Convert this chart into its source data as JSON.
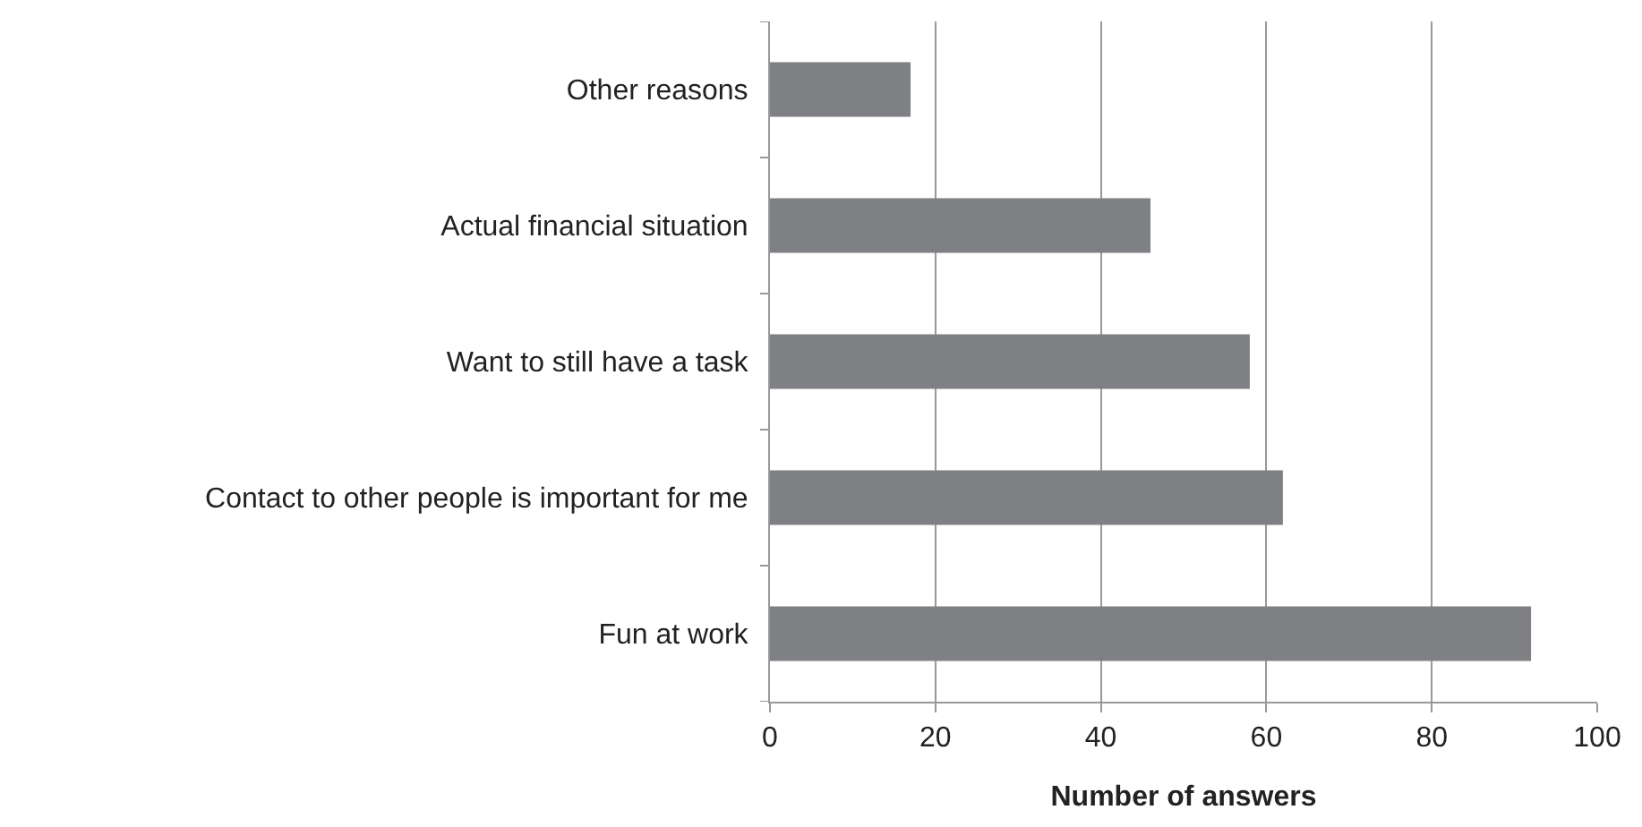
{
  "chart_data": {
    "type": "bar",
    "orientation": "horizontal",
    "xlabel": "Number of answers",
    "categories": [
      "Other reasons",
      "Actual financial situation",
      "Want to still have a task",
      "Contact to other people is important for me",
      "Fun at work"
    ],
    "values": [
      17,
      46,
      58,
      62,
      92
    ],
    "color": "#7f8083",
    "xlim": [
      0,
      100
    ],
    "xticks": [
      0,
      20,
      40,
      60,
      80,
      100
    ],
    "grid": "x"
  }
}
